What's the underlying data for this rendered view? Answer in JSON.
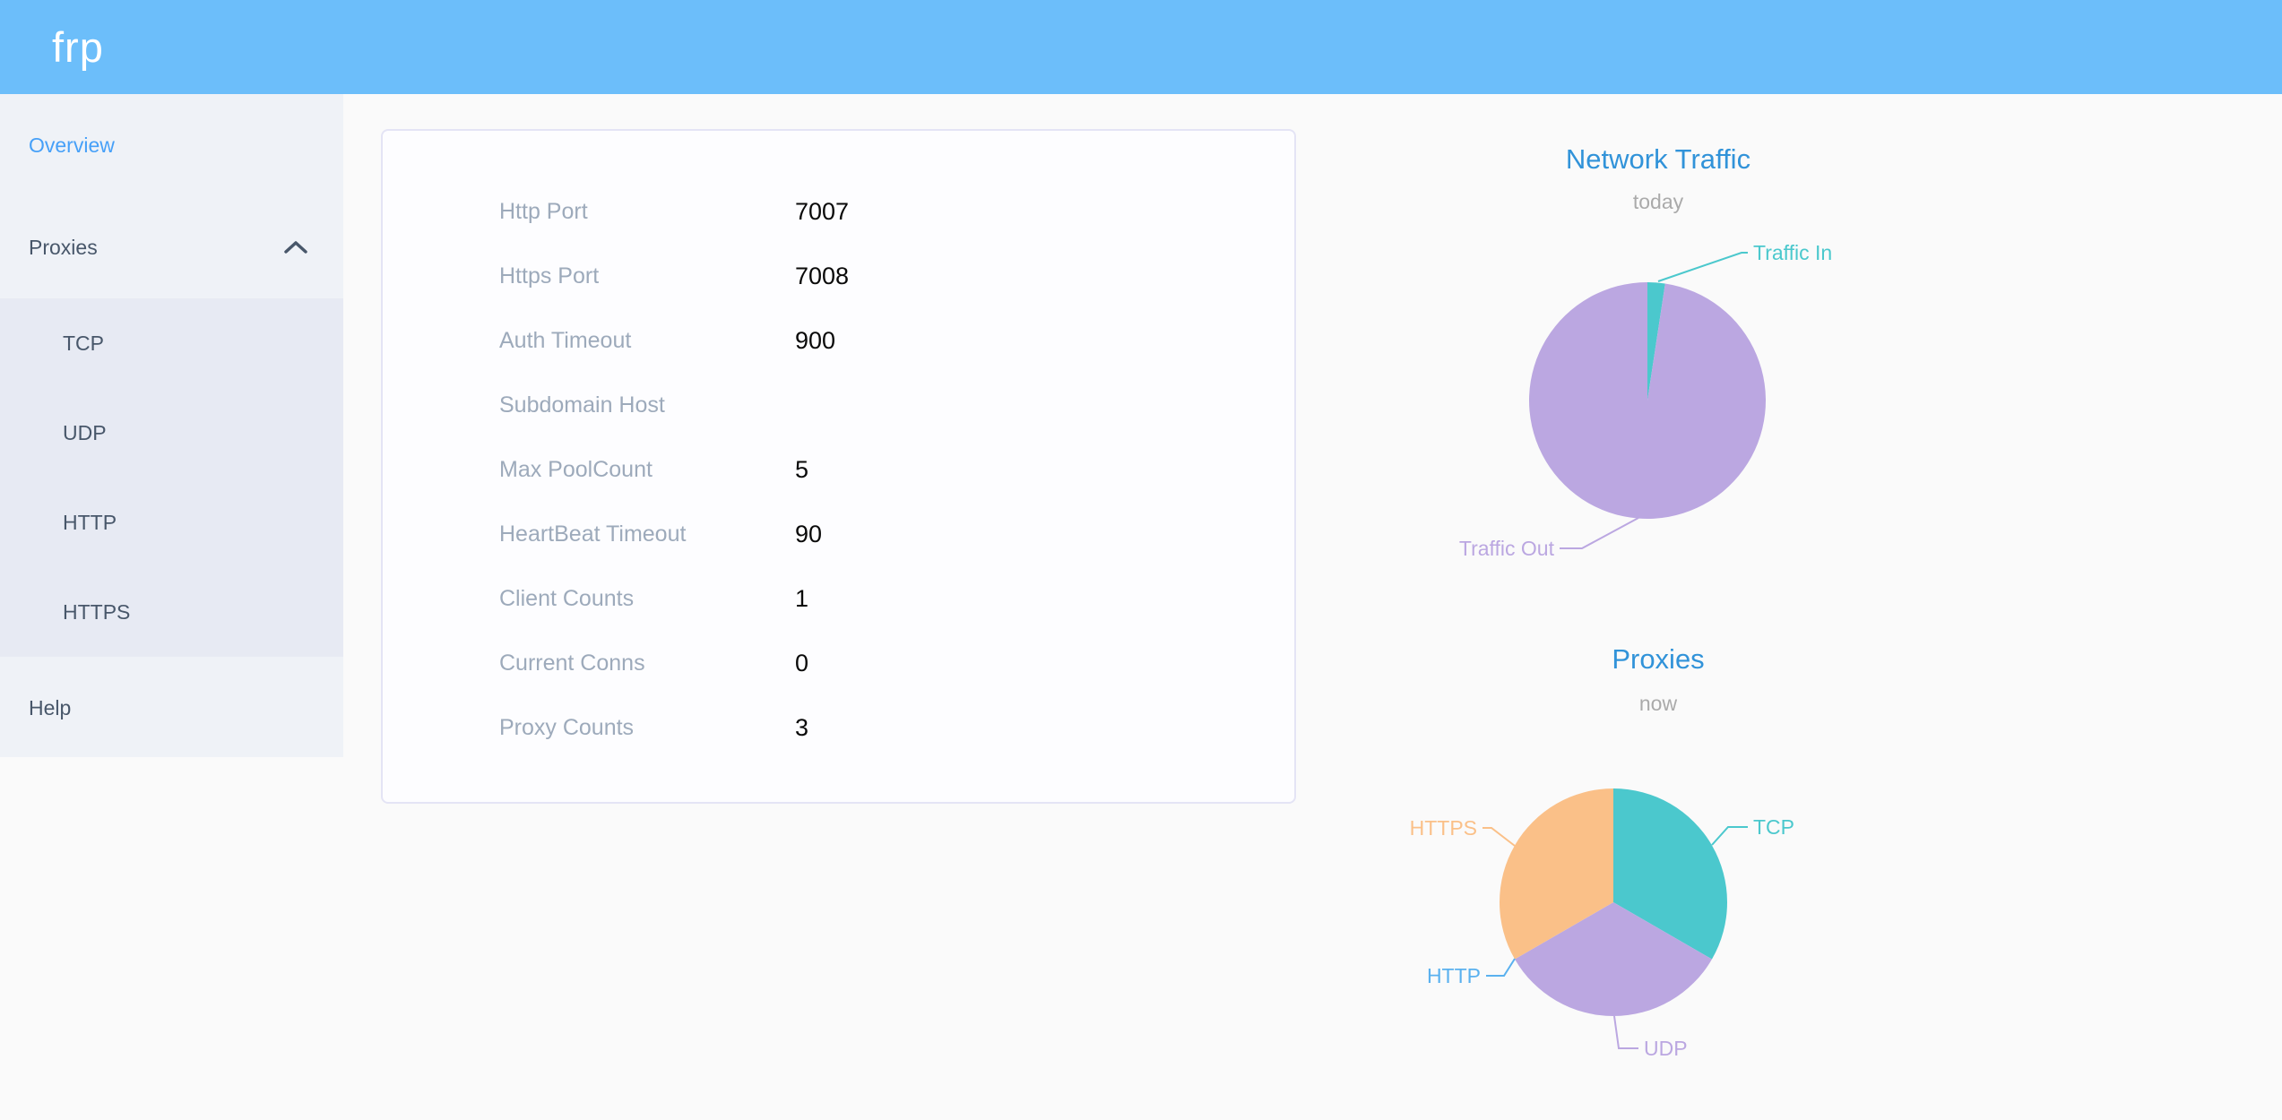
{
  "header": {
    "logo": "frp"
  },
  "sidebar": {
    "items": {
      "overview": {
        "label": "Overview",
        "active": true
      },
      "proxies": {
        "label": "Proxies",
        "expanded": true
      },
      "tcp": {
        "label": "TCP"
      },
      "udp": {
        "label": "UDP"
      },
      "http": {
        "label": "HTTP"
      },
      "https": {
        "label": "HTTPS"
      },
      "help": {
        "label": "Help"
      }
    }
  },
  "overview_card": {
    "rows": [
      {
        "label": "Http Port",
        "value": "7007"
      },
      {
        "label": "Https Port",
        "value": "7008"
      },
      {
        "label": "Auth Timeout",
        "value": "900"
      },
      {
        "label": "Subdomain Host",
        "value": ""
      },
      {
        "label": "Max PoolCount",
        "value": "5"
      },
      {
        "label": "HeartBeat Timeout",
        "value": "90"
      },
      {
        "label": "Client Counts",
        "value": "1"
      },
      {
        "label": "Current Conns",
        "value": "0"
      },
      {
        "label": "Proxy Counts",
        "value": "3"
      }
    ]
  },
  "chart_data": [
    {
      "type": "pie",
      "title": "Network Traffic",
      "subtitle": "today",
      "labels": [
        "Traffic In",
        "Traffic Out"
      ],
      "values_percent": [
        2.4,
        97.6
      ],
      "colors": [
        "#4bc8cd",
        "#bba7e1"
      ],
      "legend_position": "none",
      "label_style": "outside-leader-lines"
    },
    {
      "type": "pie",
      "title": "Proxies",
      "subtitle": "now",
      "labels": [
        "TCP",
        "UDP",
        "HTTP",
        "HTTPS"
      ],
      "values": [
        1,
        1,
        0,
        1
      ],
      "colors": [
        "#4bc8cd",
        "#bba7e1",
        "#5ab1ef",
        "#fac088"
      ],
      "legend_position": "none",
      "label_style": "outside-leader-lines"
    }
  ]
}
